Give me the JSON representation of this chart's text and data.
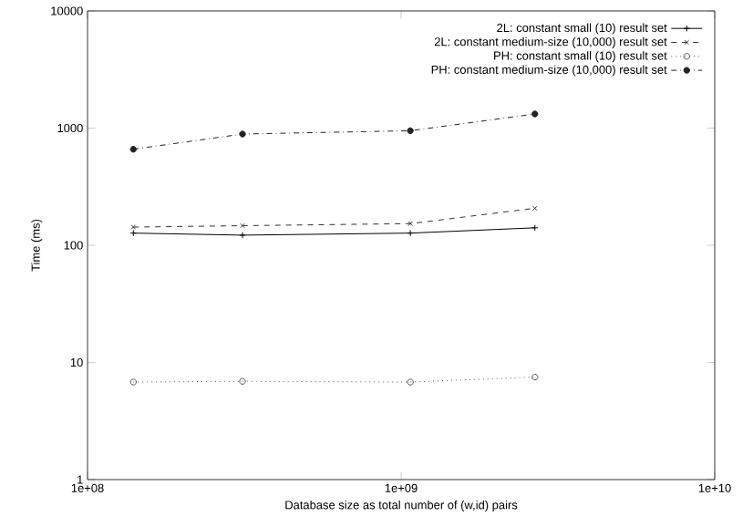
{
  "chart_data": {
    "type": "line",
    "xlabel": "Database size as total number of (w,id) pairs",
    "ylabel": "Time (ms)",
    "log": "xy",
    "grid": false,
    "legend": "top right",
    "xlim": [
      100000000,
      10000000000
    ],
    "xticks": [
      {
        "value": 100000000,
        "label": "1e+08"
      },
      {
        "value": 1000000000,
        "label": "1e+09"
      },
      {
        "value": 10000000000,
        "label": "1e+10"
      }
    ],
    "ylim": [
      1,
      10000
    ],
    "yticks": [
      1,
      10,
      100,
      1000,
      10000
    ],
    "x": [
      140000000,
      312000000,
      1070000000,
      2670000000
    ],
    "series": [
      {
        "name": "2L: constant  small (10) result set",
        "color": "#000000",
        "marker": "plus",
        "line_style": "solid",
        "values": [
          127,
          122,
          127,
          141
        ]
      },
      {
        "name": "2L: constant  medium-size (10,000) result set",
        "color": "#333333",
        "marker": "cross",
        "line_style": "dashed",
        "values": [
          143,
          147,
          153,
          207
        ]
      },
      {
        "name": "PH: constant  small (10) result set",
        "color": "#555555",
        "marker": "circle",
        "line_style": "dotted",
        "values": [
          6.8,
          6.9,
          6.8,
          7.5
        ]
      },
      {
        "name": "PH: constant  medium-size (10,000) result set",
        "color": "#222222",
        "marker": "filled circle",
        "line_style": "dashdotted",
        "values": [
          660,
          890,
          950,
          1320
        ]
      }
    ]
  }
}
